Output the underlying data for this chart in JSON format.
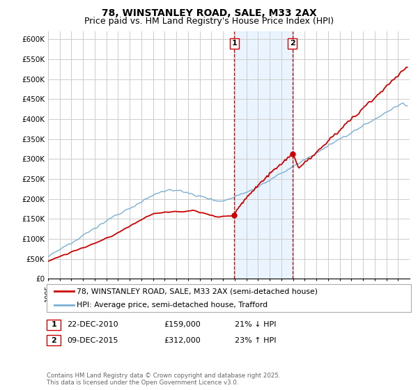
{
  "title": "78, WINSTANLEY ROAD, SALE, M33 2AX",
  "subtitle": "Price paid vs. HM Land Registry's House Price Index (HPI)",
  "ylim": [
    0,
    620000
  ],
  "yticks": [
    0,
    50000,
    100000,
    150000,
    200000,
    250000,
    300000,
    350000,
    400000,
    450000,
    500000,
    550000,
    600000
  ],
  "ytick_labels": [
    "£0",
    "£50K",
    "£100K",
    "£150K",
    "£200K",
    "£250K",
    "£300K",
    "£350K",
    "£400K",
    "£450K",
    "£500K",
    "£550K",
    "£600K"
  ],
  "xlim_start": 1995,
  "xlim_end": 2026,
  "transaction1_date": 2010.97,
  "transaction1_price": 159000,
  "transaction2_date": 2015.94,
  "transaction2_price": 312000,
  "legend_line1": "78, WINSTANLEY ROAD, SALE, M33 2AX (semi-detached house)",
  "legend_line2": "HPI: Average price, semi-detached house, Trafford",
  "table_row1": [
    "1",
    "22-DEC-2010",
    "£159,000",
    "21% ↓ HPI"
  ],
  "table_row2": [
    "2",
    "09-DEC-2015",
    "£312,000",
    "23% ↑ HPI"
  ],
  "footer": "Contains HM Land Registry data © Crown copyright and database right 2025.\nThis data is licensed under the Open Government Licence v3.0.",
  "color_red": "#cc0000",
  "color_blue": "#7aafd4",
  "color_dashed": "#cc0000",
  "background_shaded": "#ddeeff",
  "grid_color": "#cccccc",
  "title_fontsize": 10,
  "subtitle_fontsize": 9
}
